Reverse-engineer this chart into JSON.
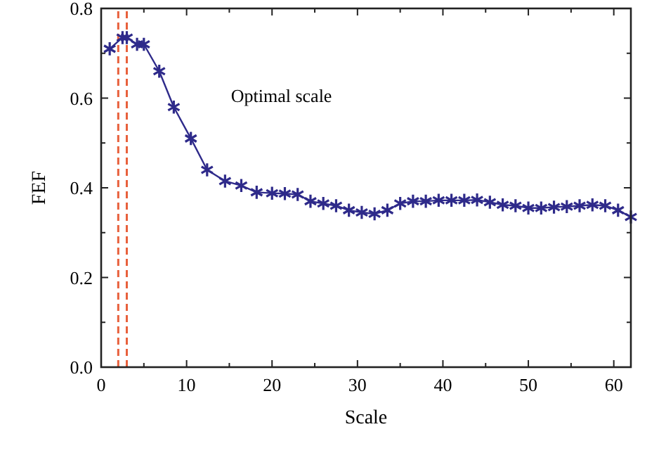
{
  "chart_data": {
    "type": "line",
    "xlabel": "Scale",
    "ylabel": "FEF",
    "annotations": [
      "Optimal scale"
    ],
    "xlim": [
      0,
      62
    ],
    "xticks": [
      0,
      {
        "value": 5,
        "label": null
      },
      10,
      {
        "value": 15,
        "label": null
      },
      20,
      {
        "value": 25,
        "label": null
      },
      30,
      {
        "value": 35,
        "label": null
      },
      40,
      {
        "value": 45,
        "label": null
      },
      50,
      {
        "value": 55,
        "label": null
      },
      60
    ],
    "ylim": [
      0,
      0.8
    ],
    "yticks": [
      {
        "value": 0,
        "label": "0.0"
      },
      {
        "value": 0.1,
        "label": null
      },
      0.2,
      {
        "value": 0.3,
        "label": null
      },
      0.4,
      {
        "value": 0.5,
        "label": null
      },
      0.6,
      {
        "value": 0.7,
        "label": null
      },
      0.8
    ],
    "grid": false,
    "marker": "cross",
    "line_style": "solid",
    "series": [
      {
        "color": "#2e2a8a",
        "x": [
          1,
          2.5,
          3,
          4.2,
          5,
          6.8,
          8.5,
          10.5,
          12.4,
          14.5,
          16.4,
          18.2,
          20,
          21.5,
          23,
          24.5,
          26,
          27.5,
          29,
          30.5,
          32,
          33.5,
          35,
          36.5,
          38,
          39.5,
          41,
          42.5,
          44,
          45.5,
          47,
          48.5,
          50,
          51.5,
          53,
          54.5,
          56,
          57.5,
          59,
          60.5,
          62
        ],
        "values": [
          0.71,
          0.735,
          0.735,
          0.72,
          0.72,
          0.66,
          0.58,
          0.51,
          0.44,
          0.415,
          0.405,
          0.39,
          0.388,
          0.387,
          0.385,
          0.37,
          0.365,
          0.36,
          0.35,
          0.345,
          0.342,
          0.35,
          0.365,
          0.37,
          0.37,
          0.372,
          0.372,
          0.372,
          0.373,
          0.368,
          0.362,
          0.36,
          0.355,
          0.355,
          0.357,
          0.358,
          0.36,
          0.362,
          0.36,
          0.35,
          0.335
        ]
      }
    ],
    "ref_lines": [
      {
        "axis": "x",
        "value": 2,
        "color": "#e8603c",
        "line_style": "dashed"
      },
      {
        "axis": "x",
        "value": 3,
        "color": "#e8603c",
        "line_style": "dashed"
      }
    ]
  }
}
